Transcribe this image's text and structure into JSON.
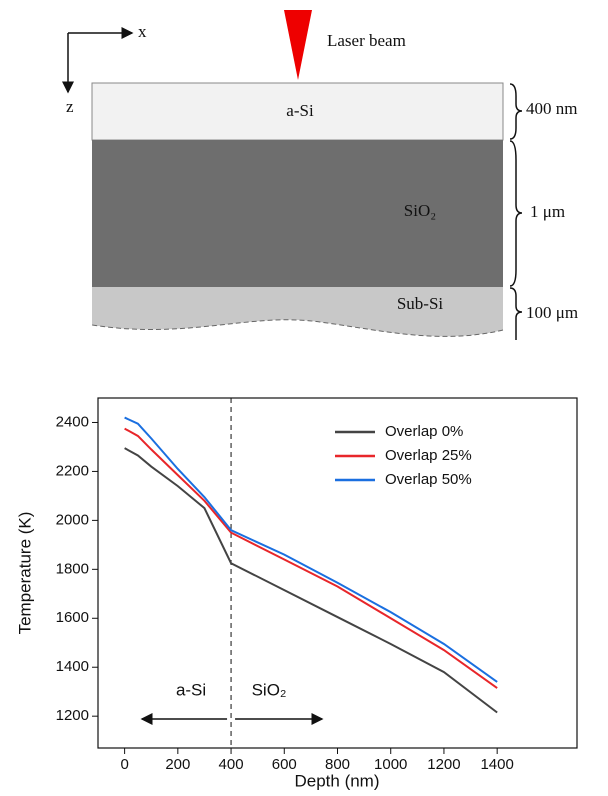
{
  "diagram": {
    "axis_x": "x",
    "axis_z": "z",
    "beam_label": "Laser beam",
    "layers": [
      {
        "label": "a-Si",
        "thickness": "400 nm"
      },
      {
        "label": "SiO₂",
        "thickness": "1 μm"
      },
      {
        "label": "Sub-Si",
        "thickness": "100 μm"
      }
    ]
  },
  "chart_data": {
    "type": "line",
    "x_label": "Depth (nm)",
    "y_label": "Temperature (K)",
    "xlim": [
      -100,
      1700
    ],
    "ylim": [
      1070,
      2500
    ],
    "xticks": [
      0,
      200,
      400,
      600,
      800,
      1000,
      1200,
      1400
    ],
    "yticks": [
      1200,
      1400,
      1600,
      1800,
      2000,
      2200,
      2400
    ],
    "legend": "upper right",
    "divider_x": 400,
    "annotations": [
      "a-Si",
      "SiO₂"
    ],
    "x": [
      0,
      50,
      100,
      200,
      300,
      400,
      600,
      800,
      1000,
      1200,
      1400
    ],
    "series": [
      {
        "name": "Overlap 0%",
        "color": "#444444",
        "values": [
          2295,
          2265,
          2220,
          2140,
          2050,
          1825,
          1715,
          1605,
          1495,
          1380,
          1215
        ]
      },
      {
        "name": "Overlap 25%",
        "color": "#e8262a",
        "values": [
          2375,
          2345,
          2290,
          2185,
          2080,
          1950,
          1840,
          1730,
          1600,
          1470,
          1315
        ]
      },
      {
        "name": "Overlap 50%",
        "color": "#1a6fe0",
        "values": [
          2420,
          2395,
          2335,
          2210,
          2095,
          1960,
          1860,
          1745,
          1625,
          1495,
          1340
        ]
      }
    ]
  }
}
